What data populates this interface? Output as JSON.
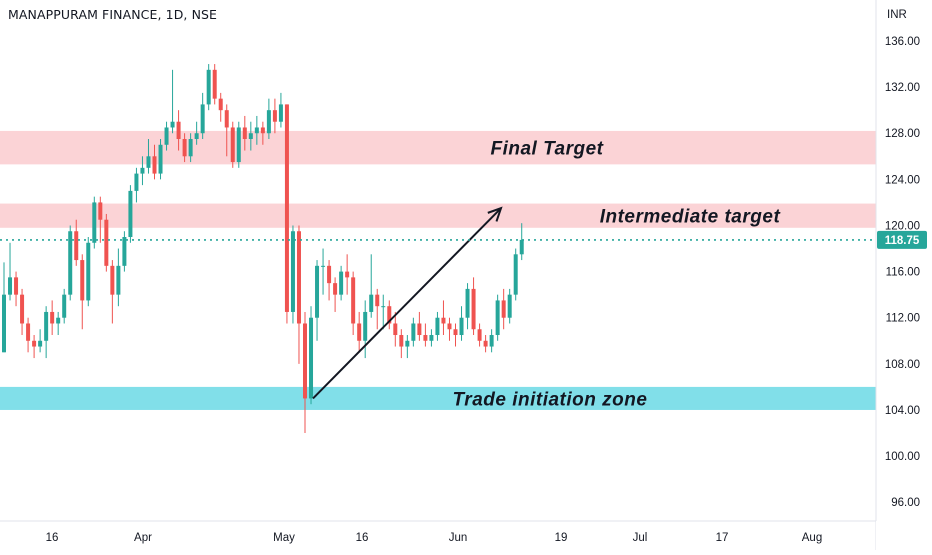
{
  "chart_data": {
    "type": "candlestick",
    "title": "MANAPPURAM FINANCE, 1D, NSE",
    "currency_label": "INR",
    "y_ticks": [
      "136.00",
      "132.00",
      "128.00",
      "124.00",
      "120.00",
      "116.00",
      "112.00",
      "108.00",
      "104.00",
      "100.00",
      "96.00"
    ],
    "y_tick_values": [
      136,
      132,
      128,
      124,
      120,
      116,
      112,
      108,
      104,
      100,
      96
    ],
    "x_ticks": [
      "16",
      "Apr",
      "May",
      "16",
      "Jun",
      "19",
      "Jul",
      "17",
      "Aug"
    ],
    "last_price": 118.75,
    "last_price_label": "118.75",
    "colors": {
      "up": "#26a69a",
      "down": "#ef5350",
      "zone_red": "#fbd3d6",
      "zone_cyan": "#81dfe9",
      "price_line": "#26a69a"
    },
    "zones": [
      {
        "name": "Final Target",
        "label": "Final Target",
        "from": 125.3,
        "to": 128.2,
        "color": "#fbd3d6"
      },
      {
        "name": "Intermediate target",
        "label": "Intermediate target",
        "from": 119.8,
        "to": 121.9,
        "color": "#fbd3d6"
      },
      {
        "name": "Trade initiation zone",
        "label": "Trade initiation zone",
        "from": 104.0,
        "to": 106.0,
        "color": "#81dfe9"
      }
    ],
    "arrow": {
      "from_price": 105.0,
      "to_price": 121.5
    },
    "candles": [
      [
        109.0,
        114.0,
        116.8,
        109.0
      ],
      [
        114.0,
        115.5,
        118.5,
        113.5
      ],
      [
        115.5,
        114.0,
        116.0,
        113.0
      ],
      [
        114.0,
        111.5,
        114.5,
        110.5
      ],
      [
        111.5,
        110.0,
        112.0,
        109.0
      ],
      [
        110.0,
        109.5,
        110.5,
        108.5
      ],
      [
        109.5,
        110.0,
        111.0,
        109.0
      ],
      [
        110.0,
        112.5,
        113.0,
        108.5
      ],
      [
        112.5,
        111.5,
        113.5,
        110.5
      ],
      [
        111.5,
        112.0,
        112.5,
        110.5
      ],
      [
        112.0,
        114.0,
        114.5,
        111.5
      ],
      [
        114.0,
        119.5,
        120.0,
        113.5
      ],
      [
        119.5,
        117.0,
        120.5,
        116.5
      ],
      [
        117.0,
        113.5,
        117.5,
        111.0
      ],
      [
        113.5,
        118.5,
        119.0,
        113.0
      ],
      [
        118.5,
        122.0,
        122.5,
        118.0
      ],
      [
        122.0,
        120.5,
        122.5,
        118.5
      ],
      [
        120.5,
        116.5,
        121.0,
        116.0
      ],
      [
        116.5,
        114.0,
        117.0,
        111.5
      ],
      [
        114.0,
        116.5,
        118.0,
        113.0
      ],
      [
        116.5,
        119.0,
        119.5,
        116.0
      ],
      [
        119.0,
        123.0,
        123.5,
        118.5
      ],
      [
        123.0,
        124.5,
        125.0,
        122.0
      ],
      [
        124.5,
        125.0,
        126.0,
        123.5
      ],
      [
        125.0,
        126.0,
        127.5,
        124.5
      ],
      [
        126.0,
        124.5,
        127.0,
        124.0
      ],
      [
        124.5,
        127.0,
        127.5,
        124.0
      ],
      [
        127.0,
        128.5,
        129.0,
        126.5
      ],
      [
        128.5,
        129.0,
        133.5,
        128.0
      ],
      [
        129.0,
        127.5,
        130.0,
        126.5
      ],
      [
        127.5,
        126.0,
        128.0,
        125.5
      ],
      [
        126.0,
        127.5,
        128.0,
        125.5
      ],
      [
        127.5,
        128.0,
        129.0,
        127.0
      ],
      [
        128.0,
        130.5,
        131.5,
        127.5
      ],
      [
        130.5,
        133.5,
        134.0,
        130.0
      ],
      [
        133.5,
        131.0,
        134.0,
        130.5
      ],
      [
        131.0,
        130.0,
        131.5,
        129.0
      ],
      [
        130.0,
        128.5,
        130.5,
        126.0
      ],
      [
        128.5,
        125.5,
        129.0,
        125.0
      ],
      [
        125.5,
        128.5,
        129.0,
        125.0
      ],
      [
        128.5,
        127.5,
        129.5,
        126.5
      ],
      [
        127.5,
        128.0,
        129.0,
        126.5
      ],
      [
        128.0,
        128.5,
        129.5,
        127.0
      ],
      [
        128.5,
        128.0,
        129.0,
        127.0
      ],
      [
        128.0,
        130.0,
        131.0,
        127.5
      ],
      [
        130.0,
        129.0,
        131.0,
        128.0
      ],
      [
        129.0,
        130.5,
        131.5,
        128.5
      ],
      [
        130.5,
        112.5,
        130.5,
        111.5
      ],
      [
        112.5,
        119.5,
        120.0,
        111.5
      ],
      [
        119.5,
        111.5,
        120.0,
        108.0
      ],
      [
        111.5,
        105.0,
        112.5,
        102.0
      ],
      [
        105.0,
        112.0,
        113.0,
        104.5
      ],
      [
        112.0,
        116.5,
        117.0,
        110.0
      ],
      [
        116.5,
        116.5,
        118.0,
        114.0
      ],
      [
        116.5,
        115.0,
        117.0,
        113.5
      ],
      [
        115.0,
        114.0,
        115.5,
        112.5
      ],
      [
        114.0,
        116.0,
        116.5,
        113.5
      ],
      [
        116.0,
        115.5,
        117.5,
        114.0
      ],
      [
        115.5,
        111.5,
        116.0,
        110.5
      ],
      [
        111.5,
        110.0,
        112.5,
        109.0
      ],
      [
        110.0,
        112.5,
        113.5,
        108.5
      ],
      [
        112.5,
        114.0,
        117.5,
        112.0
      ],
      [
        114.0,
        113.0,
        114.5,
        111.0
      ],
      [
        113.0,
        113.0,
        114.0,
        111.0
      ],
      [
        113.0,
        111.5,
        113.5,
        111.0
      ],
      [
        111.5,
        110.5,
        112.5,
        109.5
      ],
      [
        110.5,
        109.5,
        111.0,
        108.5
      ],
      [
        109.5,
        110.0,
        110.5,
        108.5
      ],
      [
        110.0,
        111.5,
        112.0,
        109.5
      ],
      [
        111.5,
        110.5,
        112.5,
        110.0
      ],
      [
        110.5,
        110.0,
        111.5,
        109.5
      ],
      [
        110.0,
        110.5,
        111.0,
        109.5
      ],
      [
        110.5,
        112.0,
        112.5,
        110.0
      ],
      [
        112.0,
        111.5,
        113.5,
        110.5
      ],
      [
        111.5,
        111.0,
        112.0,
        110.0
      ],
      [
        111.0,
        110.5,
        111.5,
        109.5
      ],
      [
        110.5,
        112.0,
        113.0,
        110.0
      ],
      [
        112.0,
        114.5,
        115.0,
        111.0
      ],
      [
        114.5,
        111.0,
        115.5,
        110.5
      ],
      [
        111.0,
        110.0,
        111.5,
        109.5
      ],
      [
        110.0,
        109.5,
        110.5,
        109.0
      ],
      [
        109.5,
        110.5,
        111.0,
        109.0
      ],
      [
        110.5,
        113.5,
        114.0,
        110.0
      ],
      [
        113.5,
        112.0,
        114.5,
        111.0
      ],
      [
        112.0,
        114.0,
        114.5,
        111.5
      ],
      [
        114.0,
        117.5,
        118.0,
        113.5
      ],
      [
        117.5,
        118.75,
        120.2,
        117.0
      ]
    ]
  }
}
